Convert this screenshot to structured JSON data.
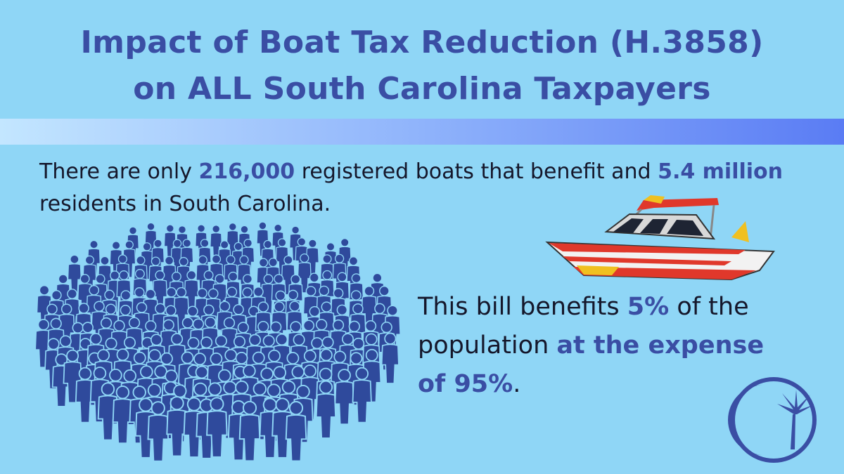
{
  "header": {
    "title_lines": [
      "Impact of Boat Tax Reduction (H.3858)",
      "on ALL South Carolina Taxpayers"
    ]
  },
  "intro": {
    "segments": [
      {
        "text": "There are only ",
        "emphasis": false
      },
      {
        "text": "216,000",
        "emphasis": true
      },
      {
        "text": " registered boats that benefit and ",
        "emphasis": false
      },
      {
        "text": "5.4 million",
        "emphasis": true
      },
      {
        "text": " residents in South Carolina.",
        "emphasis": false
      }
    ]
  },
  "statement": {
    "segments": [
      {
        "text": "This bill benefits ",
        "emphasis": false
      },
      {
        "text": "5%",
        "emphasis": true
      },
      {
        "text": " of the population ",
        "emphasis": false
      },
      {
        "text": "at the expense of 95%",
        "emphasis": true
      },
      {
        "text": ".",
        "emphasis": false
      }
    ]
  }
}
